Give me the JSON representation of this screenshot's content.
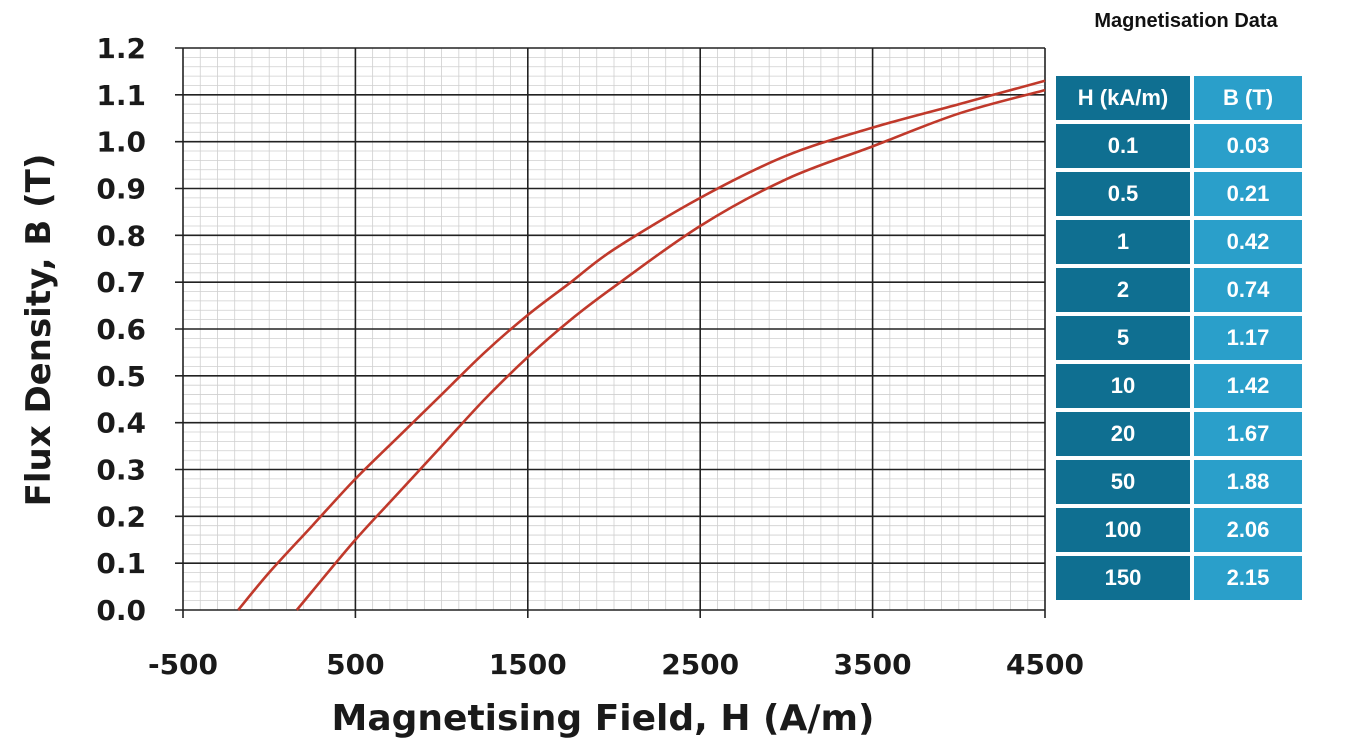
{
  "chart_data": {
    "type": "line",
    "xlabel": "Magnetising Field, H (A/m)",
    "ylabel": "Flux Density, B (T)",
    "xlim": [
      -500,
      4500
    ],
    "ylim": [
      0.0,
      1.2
    ],
    "x_ticks": [
      "-500",
      "500",
      "1500",
      "2500",
      "3500",
      "4500"
    ],
    "y_ticks": [
      "0.0",
      "0.1",
      "0.2",
      "0.3",
      "0.4",
      "0.5",
      "0.6",
      "0.7",
      "0.8",
      "0.9",
      "1.0",
      "1.1",
      "1.2"
    ],
    "grid": true,
    "series": [
      {
        "color": "#c0392b",
        "x": [
          -180,
          0,
          250,
          500,
          750,
          1000,
          1250,
          1500,
          1750,
          2000,
          2500,
          3000,
          3500,
          4000,
          4500
        ],
        "y": [
          0.0,
          0.08,
          0.18,
          0.28,
          0.37,
          0.46,
          0.55,
          0.63,
          0.7,
          0.77,
          0.88,
          0.97,
          1.03,
          1.08,
          1.13
        ]
      },
      {
        "color": "#c0392b",
        "x": [
          160,
          250,
          500,
          750,
          1000,
          1250,
          1500,
          1750,
          2000,
          2500,
          3000,
          3500,
          4000,
          4500
        ],
        "y": [
          0.0,
          0.04,
          0.15,
          0.25,
          0.35,
          0.45,
          0.54,
          0.62,
          0.69,
          0.82,
          0.92,
          0.99,
          1.06,
          1.11
        ]
      }
    ]
  },
  "table": {
    "title": "Magnetisation Data",
    "headers": [
      "H (kA/m)",
      "B (T)"
    ],
    "rows": [
      [
        "0.1",
        "0.03"
      ],
      [
        "0.5",
        "0.21"
      ],
      [
        "1",
        "0.42"
      ],
      [
        "2",
        "0.74"
      ],
      [
        "5",
        "1.17"
      ],
      [
        "10",
        "1.42"
      ],
      [
        "20",
        "1.67"
      ],
      [
        "50",
        "1.88"
      ],
      [
        "100",
        "2.06"
      ],
      [
        "150",
        "2.15"
      ]
    ]
  },
  "colors": {
    "curve": "#c0392b",
    "header_col1": "#0f6f91",
    "header_col2": "#2a9fca"
  }
}
